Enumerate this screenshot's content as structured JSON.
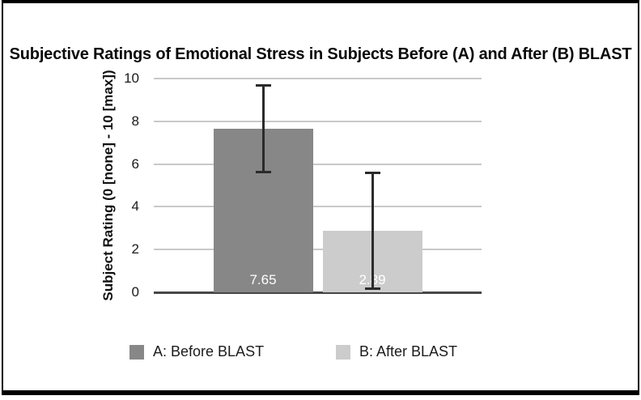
{
  "colors": {
    "frame": "#000000",
    "gridline": "#c9c9c9",
    "axis": "#474747",
    "error_bar": "#2b2b2b",
    "value_label_text": "#ffffff",
    "text": "#1a1a1a"
  },
  "chart_data": {
    "type": "bar",
    "title": "Subjective Ratings of Emotional Stress in Subjects Before (A) and After (B) BLAST",
    "xlabel": "",
    "ylabel": "Subject Rating (0 [none] - 10 [max])",
    "ylim": [
      0,
      10
    ],
    "yticks": [
      0,
      2,
      4,
      6,
      8,
      10
    ],
    "grid": true,
    "legend_position": "bottom",
    "categories": [
      "A: Before BLAST",
      "B: After BLAST"
    ],
    "series": [
      {
        "name": "A: Before BLAST",
        "value": 7.65,
        "value_label": "7.65",
        "error_low": 5.6,
        "error_high": 9.7,
        "color": "#878787"
      },
      {
        "name": "B: After BLAST",
        "value": 2.89,
        "value_label": "2.89",
        "error_low": 0.15,
        "error_high": 5.6,
        "color": "#cccccc"
      }
    ]
  }
}
